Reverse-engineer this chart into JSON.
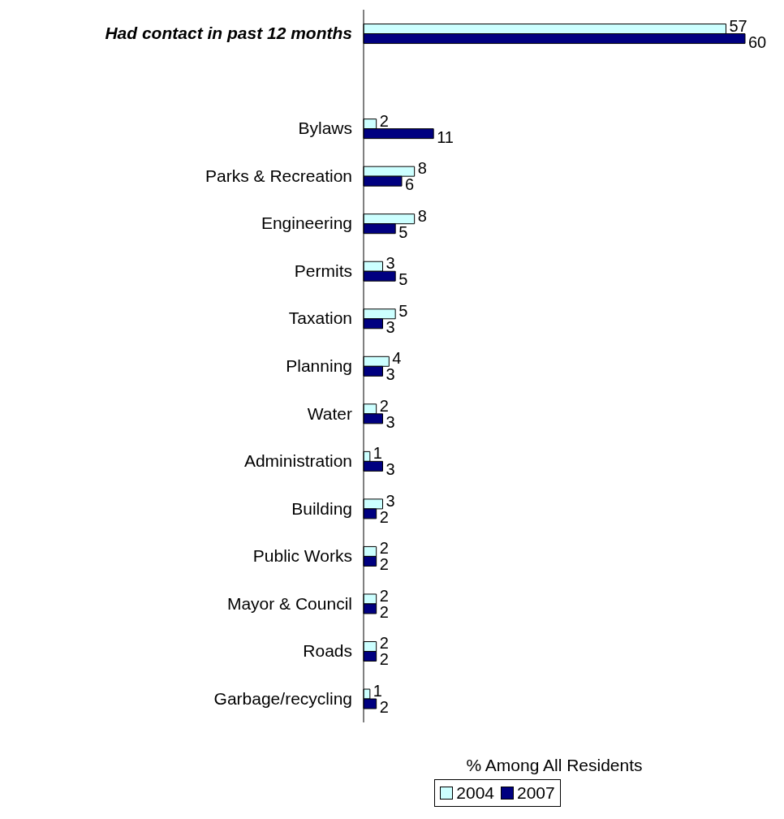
{
  "chart_data": {
    "type": "bar",
    "orientation": "horizontal",
    "xlabel": "% Among All Residents",
    "categories": [
      "Had contact in past 12 months",
      null,
      "Bylaws",
      "Parks & Recreation",
      "Engineering",
      "Permits",
      "Taxation",
      "Planning",
      "Water",
      "Administration",
      "Building",
      "Public Works",
      "Mayor & Council",
      "Roads",
      "Garbage/recycling"
    ],
    "series": [
      {
        "name": "2004",
        "color": "#ccffff",
        "values": [
          57,
          null,
          2,
          8,
          8,
          3,
          5,
          4,
          2,
          1,
          3,
          2,
          2,
          2,
          1
        ]
      },
      {
        "name": "2007",
        "color": "#000080",
        "values": [
          60,
          null,
          11,
          6,
          5,
          5,
          3,
          3,
          3,
          3,
          2,
          2,
          2,
          2,
          2
        ]
      }
    ],
    "data_labels": true,
    "legend": "bottom",
    "tick_labels": "y"
  }
}
